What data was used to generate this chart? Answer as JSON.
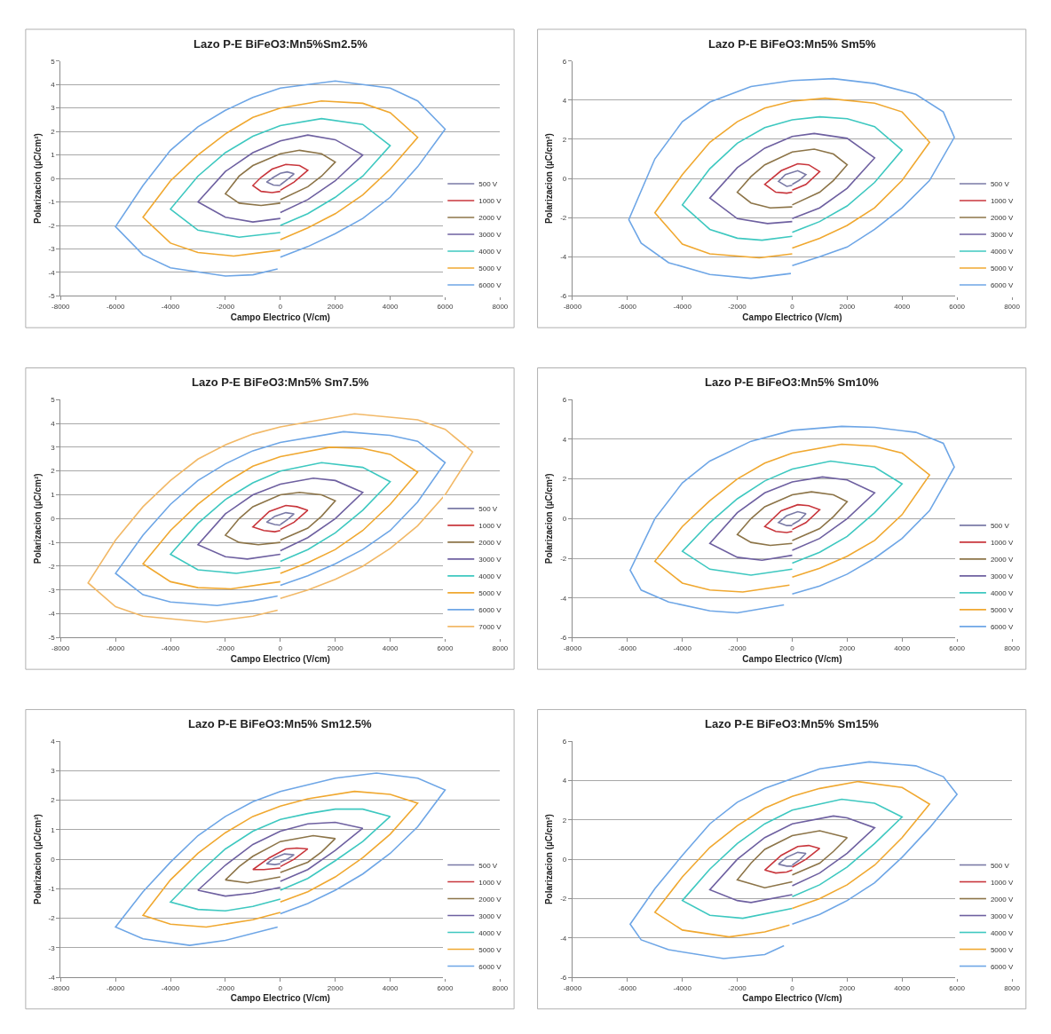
{
  "chart_data": [
    {
      "type": "line",
      "title": "Lazo P-E BiFeO3:Mn5%Sm2.5%",
      "xlabel": "Campo Electrico (V/cm)",
      "ylabel": "Polarizacion (µC/cm²)",
      "xlim": [
        -8000,
        8000
      ],
      "xticks": [
        -8000,
        -6000,
        -4000,
        -2000,
        0,
        2000,
        4000,
        6000,
        8000
      ],
      "ylim": [
        -5,
        5
      ],
      "yticks": [
        -5,
        -4,
        -3,
        -2,
        -1,
        0,
        1,
        2,
        3,
        4,
        5
      ],
      "grid": "y",
      "legend": "right",
      "series": [
        {
          "name": "500 V",
          "color": "#7a7aa6",
          "x": [
            0,
            250,
            500,
            250,
            0,
            -250,
            -500,
            -250,
            0
          ],
          "values": [
            -0.27,
            -0.05,
            0.2,
            0.28,
            0.22,
            0.05,
            -0.15,
            -0.28,
            -0.3
          ]
        },
        {
          "name": "1000 V",
          "color": "#c8363c",
          "x": [
            0,
            500,
            1000,
            700,
            200,
            -300,
            -700,
            -1000,
            -700,
            -300,
            0
          ],
          "values": [
            -0.5,
            -0.15,
            0.35,
            0.55,
            0.6,
            0.4,
            0.05,
            -0.3,
            -0.55,
            -0.6,
            -0.55
          ]
        },
        {
          "name": "2000 V",
          "color": "#8c7448",
          "x": [
            0,
            1000,
            1500,
            2000,
            1500,
            700,
            0,
            -1000,
            -1500,
            -2000,
            -1500,
            -700,
            0
          ],
          "values": [
            -0.9,
            -0.35,
            0.1,
            0.7,
            1.05,
            1.2,
            1.05,
            0.55,
            0.1,
            -0.65,
            -1.05,
            -1.15,
            -1.05
          ]
        },
        {
          "name": "3000 V",
          "color": "#6e60a0",
          "x": [
            0,
            1000,
            2000,
            3000,
            2000,
            1000,
            0,
            -1000,
            -2000,
            -3000,
            -2000,
            -1000,
            0
          ],
          "values": [
            -1.45,
            -0.9,
            -0.1,
            1.0,
            1.65,
            1.85,
            1.6,
            1.1,
            0.3,
            -1.0,
            -1.65,
            -1.85,
            -1.7
          ]
        },
        {
          "name": "4000 V",
          "color": "#3ec8c0",
          "x": [
            0,
            1000,
            2000,
            3000,
            4000,
            3000,
            1500,
            0,
            -1000,
            -2000,
            -3000,
            -4000,
            -3000,
            -1500,
            0
          ],
          "values": [
            -2.0,
            -1.5,
            -0.8,
            0.1,
            1.4,
            2.3,
            2.55,
            2.25,
            1.8,
            1.1,
            0.1,
            -1.3,
            -2.2,
            -2.5,
            -2.3
          ]
        },
        {
          "name": "5000 V",
          "color": "#f0a830",
          "x": [
            0,
            1000,
            2000,
            3000,
            4000,
            5000,
            4000,
            3000,
            1500,
            0,
            -1000,
            -2000,
            -3000,
            -4000,
            -5000,
            -4000,
            -3000,
            -1700,
            0
          ],
          "values": [
            -2.6,
            -2.1,
            -1.5,
            -0.7,
            0.4,
            1.75,
            2.8,
            3.2,
            3.3,
            3.0,
            2.6,
            1.9,
            1.0,
            -0.1,
            -1.65,
            -2.75,
            -3.15,
            -3.3,
            -3.05
          ]
        },
        {
          "name": "6000 V",
          "color": "#6ea6e6",
          "x": [
            0,
            1000,
            2000,
            3000,
            4000,
            5000,
            6000,
            5000,
            4000,
            2000,
            0,
            -1000,
            -2000,
            -3000,
            -4000,
            -5000,
            -6000,
            -5000,
            -4000,
            -2000,
            -1000,
            -100
          ],
          "values": [
            -3.35,
            -2.9,
            -2.35,
            -1.7,
            -0.8,
            0.5,
            2.1,
            3.3,
            3.85,
            4.15,
            3.85,
            3.45,
            2.9,
            2.2,
            1.2,
            -0.3,
            -2.05,
            -3.25,
            -3.8,
            -4.15,
            -4.1,
            -3.85
          ]
        }
      ]
    },
    {
      "type": "line",
      "title": "Lazo P-E BiFeO3:Mn5% Sm5%",
      "xlabel": "Campo Electrico (V/cm)",
      "ylabel": "Polarizacion (µC/cm²)",
      "xlim": [
        -8000,
        8000
      ],
      "xticks": [
        -8000,
        -6000,
        -4000,
        -2000,
        0,
        2000,
        4000,
        6000,
        8000
      ],
      "ylim": [
        -6,
        6
      ],
      "yticks": [
        -6,
        -4,
        -2,
        0,
        2,
        4,
        6
      ],
      "grid": "y",
      "legend": "right",
      "series": [
        {
          "name": "500 V",
          "color": "#7a7aa6",
          "x": [
            0,
            250,
            500,
            200,
            -250,
            -500,
            -200,
            0
          ],
          "values": [
            -0.3,
            -0.1,
            0.2,
            0.4,
            0.2,
            -0.15,
            -0.4,
            -0.35
          ]
        },
        {
          "name": "1000 V",
          "color": "#c8363c",
          "x": [
            0,
            500,
            1000,
            600,
            200,
            -400,
            -1000,
            -600,
            -200,
            0
          ],
          "values": [
            -0.6,
            -0.3,
            0.35,
            0.7,
            0.75,
            0.4,
            -0.3,
            -0.7,
            -0.75,
            -0.7
          ]
        },
        {
          "name": "2000 V",
          "color": "#8c7448",
          "x": [
            0,
            1000,
            1500,
            2000,
            1500,
            800,
            0,
            -1000,
            -1500,
            -2000,
            -1500,
            -800,
            0
          ],
          "values": [
            -1.35,
            -0.7,
            -0.1,
            0.7,
            1.25,
            1.5,
            1.35,
            0.7,
            0.1,
            -0.7,
            -1.25,
            -1.5,
            -1.45
          ]
        },
        {
          "name": "3000 V",
          "color": "#6e60a0",
          "x": [
            0,
            1000,
            2000,
            3000,
            2000,
            800,
            0,
            -1000,
            -2000,
            -3000,
            -2000,
            -900,
            0
          ],
          "values": [
            -2.05,
            -1.5,
            -0.5,
            1.05,
            2.05,
            2.3,
            2.15,
            1.55,
            0.55,
            -1.0,
            -2.05,
            -2.3,
            -2.2
          ]
        },
        {
          "name": "4000 V",
          "color": "#3ec8c0",
          "x": [
            0,
            1000,
            2000,
            3000,
            4000,
            3000,
            2000,
            1000,
            0,
            -1000,
            -2000,
            -3000,
            -4000,
            -3000,
            -2000,
            -1100,
            0
          ],
          "values": [
            -2.75,
            -2.2,
            -1.4,
            -0.2,
            1.45,
            2.65,
            3.05,
            3.15,
            3.0,
            2.6,
            1.8,
            0.5,
            -1.35,
            -2.6,
            -3.05,
            -3.15,
            -2.95
          ]
        },
        {
          "name": "5000 V",
          "color": "#f0a830",
          "x": [
            0,
            1000,
            2000,
            3000,
            4000,
            5000,
            4000,
            3000,
            1200,
            0,
            -1000,
            -2000,
            -3000,
            -4000,
            -5000,
            -4000,
            -3000,
            -1200,
            0
          ],
          "values": [
            -3.55,
            -3.05,
            -2.4,
            -1.5,
            -0.1,
            1.85,
            3.4,
            3.85,
            4.1,
            3.95,
            3.6,
            2.9,
            1.85,
            0.2,
            -1.75,
            -3.35,
            -3.85,
            -4.05,
            -3.85
          ]
        },
        {
          "name": "6000 V",
          "color": "#6ea6e6",
          "x": [
            0,
            1000,
            2000,
            3000,
            4000,
            5000,
            5900,
            5500,
            4500,
            3000,
            1500,
            0,
            -1500,
            -3000,
            -4000,
            -5000,
            -5950,
            -5500,
            -4500,
            -3000,
            -1500,
            -50
          ],
          "values": [
            -4.45,
            -4.0,
            -3.5,
            -2.6,
            -1.5,
            -0.1,
            2.1,
            3.4,
            4.3,
            4.85,
            5.1,
            5.0,
            4.7,
            3.9,
            2.9,
            1.0,
            -2.1,
            -3.3,
            -4.3,
            -4.9,
            -5.1,
            -4.85
          ]
        }
      ]
    },
    {
      "type": "line",
      "title": "Lazo P-E BiFeO3:Mn5% Sm7.5%",
      "xlabel": "Campo Electrico (V/cm)",
      "ylabel": "Polarizacion (µC/cm²)",
      "xlim": [
        -8000,
        8000
      ],
      "xticks": [
        -8000,
        -6000,
        -4000,
        -2000,
        0,
        2000,
        4000,
        6000,
        8000
      ],
      "ylim": [
        -5,
        5
      ],
      "yticks": [
        -5,
        -4,
        -3,
        -2,
        -1,
        0,
        1,
        2,
        3,
        4,
        5
      ],
      "grid": "y",
      "legend": "right",
      "series": [
        {
          "name": "500 V",
          "color": "#7a7aa6",
          "x": [
            0,
            250,
            500,
            200,
            -200,
            -500,
            -200,
            0
          ],
          "values": [
            -0.25,
            -0.05,
            0.2,
            0.25,
            0.1,
            -0.15,
            -0.25,
            -0.28
          ]
        },
        {
          "name": "1000 V",
          "color": "#c8363c",
          "x": [
            0,
            500,
            1000,
            600,
            200,
            -400,
            -1000,
            -600,
            -200,
            0
          ],
          "values": [
            -0.45,
            -0.15,
            0.35,
            0.5,
            0.55,
            0.3,
            -0.35,
            -0.5,
            -0.55,
            -0.5
          ]
        },
        {
          "name": "2000 V",
          "color": "#8c7448",
          "x": [
            0,
            1000,
            1500,
            2000,
            1500,
            700,
            0,
            -1000,
            -1500,
            -2000,
            -1500,
            -800,
            0
          ],
          "values": [
            -0.9,
            -0.4,
            0.1,
            0.75,
            1.0,
            1.1,
            1.0,
            0.5,
            0.0,
            -0.7,
            -1.0,
            -1.1,
            -1.0
          ]
        },
        {
          "name": "3000 V",
          "color": "#6e60a0",
          "x": [
            0,
            1000,
            2000,
            3000,
            2000,
            1200,
            0,
            -1000,
            -2000,
            -3000,
            -2000,
            -1200,
            0
          ],
          "values": [
            -1.35,
            -0.8,
            0.0,
            1.1,
            1.6,
            1.7,
            1.45,
            1.0,
            0.2,
            -1.1,
            -1.6,
            -1.7,
            -1.5
          ]
        },
        {
          "name": "4000 V",
          "color": "#3ec8c0",
          "x": [
            0,
            1000,
            2000,
            3000,
            4000,
            3000,
            1500,
            0,
            -1000,
            -2000,
            -3000,
            -4000,
            -3000,
            -1600,
            0
          ],
          "values": [
            -1.8,
            -1.3,
            -0.6,
            0.35,
            1.55,
            2.15,
            2.35,
            2.0,
            1.5,
            0.8,
            -0.2,
            -1.5,
            -2.15,
            -2.3,
            -2.05
          ]
        },
        {
          "name": "5000 V",
          "color": "#f0a830",
          "x": [
            0,
            1000,
            2000,
            3000,
            4000,
            5000,
            4000,
            3000,
            1800,
            0,
            -1000,
            -2000,
            -3000,
            -4000,
            -5000,
            -4000,
            -3000,
            -1800,
            0
          ],
          "values": [
            -2.3,
            -1.85,
            -1.3,
            -0.5,
            0.6,
            1.95,
            2.7,
            2.95,
            3.0,
            2.6,
            2.2,
            1.5,
            0.6,
            -0.5,
            -1.9,
            -2.65,
            -2.9,
            -2.95,
            -2.65
          ]
        },
        {
          "name": "6000 V",
          "color": "#6ea6e6",
          "x": [
            0,
            1000,
            2000,
            3000,
            4000,
            5000,
            6000,
            5000,
            4000,
            2300,
            0,
            -1000,
            -2000,
            -3000,
            -4000,
            -5000,
            -6000,
            -5000,
            -4000,
            -2300,
            -1000,
            -100
          ],
          "values": [
            -2.8,
            -2.4,
            -1.9,
            -1.3,
            -0.5,
            0.7,
            2.35,
            3.25,
            3.5,
            3.65,
            3.2,
            2.85,
            2.3,
            1.6,
            0.6,
            -0.7,
            -2.3,
            -3.2,
            -3.5,
            -3.65,
            -3.45,
            -3.25
          ]
        },
        {
          "name": "7000 V",
          "color": "#f2b968",
          "x": [
            0,
            1000,
            2000,
            3000,
            4000,
            5000,
            6000,
            7000,
            6000,
            5000,
            2700,
            0,
            -1000,
            -2000,
            -3000,
            -4000,
            -5000,
            -6000,
            -7000,
            -6000,
            -5000,
            -2700,
            -1000,
            -100
          ],
          "values": [
            -3.35,
            -3.0,
            -2.55,
            -2.0,
            -1.25,
            -0.3,
            1.0,
            2.8,
            3.75,
            4.15,
            4.4,
            3.85,
            3.55,
            3.1,
            2.5,
            1.6,
            0.5,
            -0.9,
            -2.7,
            -3.7,
            -4.1,
            -4.35,
            -4.1,
            -3.85
          ]
        }
      ]
    },
    {
      "type": "line",
      "title": "Lazo P-E BiFeO3:Mn5% Sm10%",
      "xlabel": "Campo Electrico (V/cm)",
      "ylabel": "Polarizacion (µC/cm²)",
      "xlim": [
        -8000,
        8000
      ],
      "xticks": [
        -8000,
        -6000,
        -4000,
        -2000,
        0,
        2000,
        4000,
        6000,
        8000
      ],
      "ylim": [
        -6,
        6
      ],
      "yticks": [
        -6,
        -4,
        -2,
        0,
        2,
        4,
        6
      ],
      "grid": "y",
      "legend": "right",
      "series": [
        {
          "name": "500 V",
          "color": "#7a7aa6",
          "x": [
            0,
            250,
            500,
            200,
            -200,
            -500,
            -200,
            0
          ],
          "values": [
            -0.3,
            -0.1,
            0.25,
            0.35,
            0.15,
            -0.2,
            -0.35,
            -0.35
          ]
        },
        {
          "name": "1000 V",
          "color": "#c8363c",
          "x": [
            0,
            500,
            1000,
            600,
            200,
            -400,
            -1000,
            -600,
            -200,
            0
          ],
          "values": [
            -0.55,
            -0.2,
            0.45,
            0.65,
            0.7,
            0.4,
            -0.4,
            -0.65,
            -0.7,
            -0.65
          ]
        },
        {
          "name": "2000 V",
          "color": "#8c7448",
          "x": [
            0,
            1000,
            1500,
            2000,
            1500,
            700,
            0,
            -1000,
            -1500,
            -2000,
            -1500,
            -800,
            0
          ],
          "values": [
            -1.1,
            -0.5,
            0.1,
            0.85,
            1.2,
            1.35,
            1.2,
            0.6,
            0.0,
            -0.8,
            -1.2,
            -1.35,
            -1.25
          ]
        },
        {
          "name": "3000 V",
          "color": "#6e60a0",
          "x": [
            0,
            1000,
            2000,
            3000,
            2000,
            1100,
            0,
            -1000,
            -2000,
            -3000,
            -2000,
            -1100,
            0
          ],
          "values": [
            -1.6,
            -1.0,
            0.0,
            1.3,
            1.95,
            2.1,
            1.85,
            1.3,
            0.3,
            -1.25,
            -1.95,
            -2.1,
            -1.85
          ]
        },
        {
          "name": "4000 V",
          "color": "#3ec8c0",
          "x": [
            0,
            1000,
            2000,
            3000,
            4000,
            3000,
            1400,
            0,
            -1000,
            -2000,
            -3000,
            -4000,
            -3000,
            -1500,
            0
          ],
          "values": [
            -2.25,
            -1.7,
            -0.9,
            0.3,
            1.75,
            2.6,
            2.9,
            2.5,
            1.9,
            1.0,
            -0.2,
            -1.65,
            -2.55,
            -2.85,
            -2.55
          ]
        },
        {
          "name": "5000 V",
          "color": "#f0a830",
          "x": [
            0,
            1000,
            2000,
            3000,
            4000,
            5000,
            4000,
            3000,
            1800,
            0,
            -1000,
            -2000,
            -3000,
            -4000,
            -5000,
            -4000,
            -3000,
            -1800,
            -100
          ],
          "values": [
            -2.95,
            -2.5,
            -1.9,
            -1.1,
            0.2,
            2.2,
            3.3,
            3.65,
            3.75,
            3.3,
            2.8,
            2.0,
            0.9,
            -0.4,
            -2.15,
            -3.25,
            -3.6,
            -3.7,
            -3.35
          ]
        },
        {
          "name": "6000 V",
          "color": "#6ea6e6",
          "x": [
            0,
            1000,
            2000,
            3000,
            4000,
            5000,
            5900,
            5500,
            4500,
            3000,
            1800,
            0,
            -1500,
            -3000,
            -4000,
            -5000,
            -5900,
            -5500,
            -4500,
            -3000,
            -2000,
            -300
          ],
          "values": [
            -3.8,
            -3.4,
            -2.8,
            -2.0,
            -1.0,
            0.4,
            2.6,
            3.8,
            4.35,
            4.6,
            4.65,
            4.45,
            3.9,
            2.9,
            1.8,
            0.0,
            -2.6,
            -3.6,
            -4.2,
            -4.65,
            -4.75,
            -4.35
          ]
        }
      ]
    },
    {
      "type": "line",
      "title": "Lazo P-E BiFeO3:Mn5% Sm12.5%",
      "xlabel": "Campo Electrico (V/cm)",
      "ylabel": "Polarizacion (µC/cm²)",
      "xlim": [
        -8000,
        8000
      ],
      "xticks": [
        -8000,
        -6000,
        -4000,
        -2000,
        0,
        2000,
        4000,
        6000,
        8000
      ],
      "ylim": [
        -4,
        4
      ],
      "yticks": [
        -4,
        -3,
        -2,
        -1,
        0,
        1,
        2,
        3,
        4
      ],
      "grid": "y",
      "legend": "right",
      "series": [
        {
          "name": "500 V",
          "color": "#7a7aa6",
          "x": [
            0,
            250,
            500,
            150,
            -200,
            -500,
            -200,
            0
          ],
          "values": [
            -0.1,
            0.0,
            0.15,
            0.18,
            0.05,
            -0.15,
            -0.18,
            -0.15
          ]
        },
        {
          "name": "1000 V",
          "color": "#c8363c",
          "x": [
            0,
            500,
            1000,
            600,
            200,
            -400,
            -1000,
            -600,
            0
          ],
          "values": [
            -0.25,
            0.0,
            0.35,
            0.38,
            0.35,
            0.05,
            -0.35,
            -0.35,
            -0.3
          ]
        },
        {
          "name": "2000 V",
          "color": "#8c7448",
          "x": [
            0,
            1000,
            1500,
            2000,
            1200,
            0,
            -1000,
            -1500,
            -2000,
            -1200,
            0
          ],
          "values": [
            -0.45,
            -0.1,
            0.25,
            0.7,
            0.8,
            0.6,
            0.1,
            -0.25,
            -0.7,
            -0.8,
            -0.6
          ]
        },
        {
          "name": "3000 V",
          "color": "#6e60a0",
          "x": [
            0,
            1000,
            2000,
            3000,
            2000,
            1000,
            0,
            -1000,
            -2000,
            -3000,
            -2000,
            -1000,
            0
          ],
          "values": [
            -0.75,
            -0.35,
            0.3,
            1.05,
            1.25,
            1.2,
            0.95,
            0.5,
            -0.2,
            -1.05,
            -1.25,
            -1.15,
            -0.95
          ]
        },
        {
          "name": "4000 V",
          "color": "#3ec8c0",
          "x": [
            0,
            1000,
            2000,
            3000,
            4000,
            3000,
            2000,
            1000,
            0,
            -1000,
            -2000,
            -3000,
            -4000,
            -3000,
            -2000,
            -1000,
            0
          ],
          "values": [
            -1.05,
            -0.65,
            -0.05,
            0.6,
            1.45,
            1.7,
            1.7,
            1.55,
            1.35,
            0.95,
            0.35,
            -0.5,
            -1.45,
            -1.7,
            -1.75,
            -1.6,
            -1.35
          ]
        },
        {
          "name": "5000 V",
          "color": "#f0a830",
          "x": [
            0,
            1000,
            2000,
            3000,
            4000,
            5000,
            4000,
            2700,
            1000,
            0,
            -1000,
            -2000,
            -3000,
            -4000,
            -5000,
            -4000,
            -2700,
            -1000,
            0
          ],
          "values": [
            -1.45,
            -1.1,
            -0.6,
            0.05,
            0.85,
            1.9,
            2.2,
            2.3,
            2.05,
            1.8,
            1.45,
            0.9,
            0.2,
            -0.7,
            -1.9,
            -2.2,
            -2.3,
            -2.05,
            -1.8
          ]
        },
        {
          "name": "6000 V",
          "color": "#6ea6e6",
          "x": [
            0,
            1000,
            2000,
            3000,
            4000,
            5000,
            6000,
            5000,
            3500,
            2000,
            0,
            -1000,
            -2000,
            -3000,
            -4000,
            -5000,
            -6000,
            -5000,
            -3300,
            -2000,
            -100
          ],
          "values": [
            -1.85,
            -1.5,
            -1.05,
            -0.5,
            0.2,
            1.1,
            2.35,
            2.75,
            2.92,
            2.75,
            2.3,
            1.95,
            1.45,
            0.8,
            -0.1,
            -1.1,
            -2.3,
            -2.7,
            -2.92,
            -2.75,
            -2.3
          ]
        }
      ]
    },
    {
      "type": "line",
      "title": "Lazo P-E BiFeO3:Mn5% Sm15%",
      "xlabel": "Campo Electrico (V/cm)",
      "ylabel": "Polarizacion (µC/cm²)",
      "xlim": [
        -8000,
        8000
      ],
      "xticks": [
        -8000,
        -6000,
        -4000,
        -2000,
        0,
        2000,
        4000,
        6000,
        8000
      ],
      "ylim": [
        -6,
        6
      ],
      "yticks": [
        -6,
        -4,
        -2,
        0,
        2,
        4,
        6
      ],
      "grid": "y",
      "legend": "right",
      "series": [
        {
          "name": "500 V",
          "color": "#7a7aa6",
          "x": [
            0,
            250,
            500,
            200,
            -200,
            -500,
            -200,
            0
          ],
          "values": [
            -0.3,
            -0.05,
            0.3,
            0.35,
            0.1,
            -0.25,
            -0.35,
            -0.35
          ]
        },
        {
          "name": "1000 V",
          "color": "#c8363c",
          "x": [
            0,
            500,
            1000,
            600,
            200,
            -400,
            -1000,
            -600,
            -200,
            0
          ],
          "values": [
            -0.4,
            0.0,
            0.55,
            0.7,
            0.65,
            0.2,
            -0.55,
            -0.7,
            -0.65,
            -0.55
          ]
        },
        {
          "name": "2000 V",
          "color": "#8c7448",
          "x": [
            0,
            1000,
            1500,
            2000,
            1000,
            0,
            -1000,
            -1500,
            -2000,
            -1000,
            0
          ],
          "values": [
            -0.8,
            -0.2,
            0.4,
            1.1,
            1.45,
            1.2,
            0.5,
            -0.2,
            -1.05,
            -1.45,
            -1.15
          ]
        },
        {
          "name": "3000 V",
          "color": "#6e60a0",
          "x": [
            0,
            1000,
            2000,
            3000,
            2000,
            1500,
            0,
            -1000,
            -2000,
            -3000,
            -2000,
            -1500,
            0
          ],
          "values": [
            -1.35,
            -0.7,
            0.3,
            1.6,
            2.1,
            2.2,
            1.8,
            1.1,
            0.0,
            -1.55,
            -2.1,
            -2.2,
            -1.8
          ]
        },
        {
          "name": "4000 V",
          "color": "#3ec8c0",
          "x": [
            0,
            1000,
            2000,
            3000,
            4000,
            3000,
            1800,
            0,
            -1000,
            -2000,
            -3000,
            -4000,
            -3000,
            -1800,
            0
          ],
          "values": [
            -1.9,
            -1.3,
            -0.4,
            0.8,
            2.15,
            2.85,
            3.05,
            2.5,
            1.8,
            0.8,
            -0.5,
            -2.1,
            -2.85,
            -3.0,
            -2.5
          ]
        },
        {
          "name": "5000 V",
          "color": "#f0a830",
          "x": [
            0,
            1000,
            2000,
            3000,
            4000,
            5000,
            4000,
            2400,
            1000,
            0,
            -1000,
            -2000,
            -3000,
            -4000,
            -5000,
            -4000,
            -2300,
            -1000,
            -100
          ],
          "values": [
            -2.5,
            -2.0,
            -1.3,
            -0.3,
            1.1,
            2.8,
            3.65,
            3.95,
            3.6,
            3.2,
            2.6,
            1.7,
            0.6,
            -0.9,
            -2.7,
            -3.6,
            -3.95,
            -3.7,
            -3.35
          ]
        },
        {
          "name": "6000 V",
          "color": "#6ea6e6",
          "x": [
            0,
            1000,
            2000,
            3000,
            4000,
            5000,
            6000,
            5500,
            4500,
            2800,
            1000,
            0,
            -1000,
            -2000,
            -3000,
            -4000,
            -5000,
            -5900,
            -5500,
            -4500,
            -2500,
            -1000,
            -300
          ],
          "values": [
            -3.3,
            -2.8,
            -2.1,
            -1.2,
            0.1,
            1.6,
            3.3,
            4.2,
            4.75,
            4.95,
            4.6,
            4.1,
            3.6,
            2.9,
            1.8,
            0.2,
            -1.5,
            -3.3,
            -4.1,
            -4.6,
            -5.05,
            -4.85,
            -4.4
          ]
        }
      ]
    }
  ]
}
